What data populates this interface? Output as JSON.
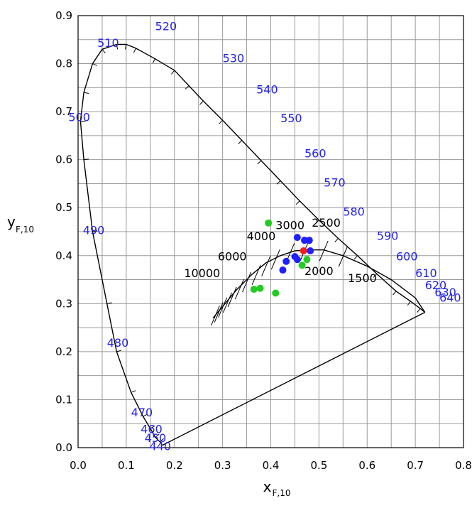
{
  "chart_data": {
    "type": "scatter",
    "title": "",
    "xlabel": {
      "main": "x",
      "sub": "F,10"
    },
    "ylabel": {
      "main": "y",
      "sub": "F,10"
    },
    "xlim": [
      0,
      0.8
    ],
    "ylim": [
      0,
      0.9
    ],
    "grid": true,
    "x_ticks": [
      "0.0",
      "0.1",
      "0.2",
      "0.3",
      "0.4",
      "0.5",
      "0.6",
      "0.7",
      "0.8"
    ],
    "y_ticks": [
      "0.0",
      "0.1",
      "0.2",
      "0.3",
      "0.4",
      "0.5",
      "0.6",
      "0.7",
      "0.8",
      "0.9"
    ],
    "spectral_locus": [
      [
        0.175,
        0.005
      ],
      [
        0.17,
        0.012
      ],
      [
        0.16,
        0.022
      ],
      [
        0.15,
        0.04
      ],
      [
        0.135,
        0.065
      ],
      [
        0.11,
        0.115
      ],
      [
        0.08,
        0.2
      ],
      [
        0.06,
        0.3
      ],
      [
        0.03,
        0.45
      ],
      [
        0.012,
        0.6
      ],
      [
        0.005,
        0.68
      ],
      [
        0.012,
        0.74
      ],
      [
        0.03,
        0.8
      ],
      [
        0.05,
        0.83
      ],
      [
        0.08,
        0.84
      ],
      [
        0.1,
        0.84
      ],
      [
        0.12,
        0.832
      ],
      [
        0.16,
        0.81
      ],
      [
        0.2,
        0.786
      ],
      [
        0.23,
        0.754
      ],
      [
        0.26,
        0.722
      ],
      [
        0.3,
        0.682
      ],
      [
        0.34,
        0.64
      ],
      [
        0.38,
        0.598
      ],
      [
        0.42,
        0.556
      ],
      [
        0.46,
        0.514
      ],
      [
        0.5,
        0.474
      ],
      [
        0.54,
        0.436
      ],
      [
        0.58,
        0.4
      ],
      [
        0.62,
        0.362
      ],
      [
        0.66,
        0.326
      ],
      [
        0.69,
        0.305
      ],
      [
        0.71,
        0.29
      ],
      [
        0.72,
        0.282
      ]
    ],
    "purple_line": [
      [
        0.72,
        0.282
      ],
      [
        0.175,
        0.005
      ]
    ],
    "planckian_locus": [
      [
        0.28,
        0.27
      ],
      [
        0.305,
        0.3
      ],
      [
        0.33,
        0.33
      ],
      [
        0.36,
        0.36
      ],
      [
        0.39,
        0.385
      ],
      [
        0.42,
        0.4
      ],
      [
        0.45,
        0.41
      ],
      [
        0.48,
        0.412
      ],
      [
        0.51,
        0.412
      ],
      [
        0.55,
        0.4
      ],
      [
        0.6,
        0.378
      ],
      [
        0.65,
        0.35
      ],
      [
        0.7,
        0.312
      ],
      [
        0.72,
        0.282
      ]
    ],
    "wavelength_labels": [
      {
        "text": "440",
        "x": 0.148,
        "y": -0.005
      },
      {
        "text": "450",
        "x": 0.138,
        "y": 0.012
      },
      {
        "text": "460",
        "x": 0.13,
        "y": 0.03
      },
      {
        "text": "470",
        "x": 0.11,
        "y": 0.065
      },
      {
        "text": "480",
        "x": 0.06,
        "y": 0.21
      },
      {
        "text": "490",
        "x": 0.01,
        "y": 0.445
      },
      {
        "text": "500",
        "x": -0.02,
        "y": 0.68
      },
      {
        "text": "510",
        "x": 0.04,
        "y": 0.835
      },
      {
        "text": "520",
        "x": 0.16,
        "y": 0.87
      },
      {
        "text": "530",
        "x": 0.3,
        "y": 0.803
      },
      {
        "text": "540",
        "x": 0.37,
        "y": 0.738
      },
      {
        "text": "550",
        "x": 0.42,
        "y": 0.678
      },
      {
        "text": "560",
        "x": 0.47,
        "y": 0.605
      },
      {
        "text": "570",
        "x": 0.51,
        "y": 0.544
      },
      {
        "text": "580",
        "x": 0.55,
        "y": 0.483
      },
      {
        "text": "590",
        "x": 0.62,
        "y": 0.433
      },
      {
        "text": "600",
        "x": 0.66,
        "y": 0.39
      },
      {
        "text": "610",
        "x": 0.7,
        "y": 0.355
      },
      {
        "text": "620",
        "x": 0.72,
        "y": 0.33
      },
      {
        "text": "630",
        "x": 0.74,
        "y": 0.315
      },
      {
        "text": "640",
        "x": 0.75,
        "y": 0.304
      }
    ],
    "cct_labels": [
      {
        "text": "1500",
        "x": 0.56,
        "y": 0.345
      },
      {
        "text": "2000",
        "x": 0.47,
        "y": 0.36
      },
      {
        "text": "2500",
        "x": 0.485,
        "y": 0.46
      },
      {
        "text": "3000",
        "x": 0.41,
        "y": 0.455
      },
      {
        "text": "4000",
        "x": 0.35,
        "y": 0.432
      },
      {
        "text": "6000",
        "x": 0.29,
        "y": 0.39
      },
      {
        "text": "10000",
        "x": 0.22,
        "y": 0.355
      }
    ],
    "isotherms": [
      {
        "x": 0.285,
        "y": 0.275
      },
      {
        "x": 0.292,
        "y": 0.282
      },
      {
        "x": 0.3,
        "y": 0.292
      },
      {
        "x": 0.31,
        "y": 0.302
      },
      {
        "x": 0.32,
        "y": 0.314
      },
      {
        "x": 0.335,
        "y": 0.33
      },
      {
        "x": 0.35,
        "y": 0.345
      },
      {
        "x": 0.37,
        "y": 0.36
      },
      {
        "x": 0.39,
        "y": 0.378
      },
      {
        "x": 0.41,
        "y": 0.392
      },
      {
        "x": 0.44,
        "y": 0.405
      },
      {
        "x": 0.47,
        "y": 0.41
      },
      {
        "x": 0.51,
        "y": 0.41
      },
      {
        "x": 0.55,
        "y": 0.398
      }
    ],
    "series": [
      {
        "color": "#22cc22",
        "points": [
          [
            0.395,
            0.468
          ],
          [
            0.365,
            0.33
          ],
          [
            0.378,
            0.332
          ],
          [
            0.41,
            0.322
          ],
          [
            0.465,
            0.38
          ],
          [
            0.475,
            0.392
          ]
        ]
      },
      {
        "color": "#1f1fff",
        "points": [
          [
            0.455,
            0.438
          ],
          [
            0.47,
            0.432
          ],
          [
            0.48,
            0.432
          ],
          [
            0.482,
            0.41
          ],
          [
            0.45,
            0.398
          ],
          [
            0.455,
            0.392
          ],
          [
            0.432,
            0.388
          ],
          [
            0.425,
            0.37
          ]
        ]
      },
      {
        "color": "#ff1a1a",
        "points": [
          [
            0.468,
            0.41
          ]
        ]
      }
    ]
  }
}
